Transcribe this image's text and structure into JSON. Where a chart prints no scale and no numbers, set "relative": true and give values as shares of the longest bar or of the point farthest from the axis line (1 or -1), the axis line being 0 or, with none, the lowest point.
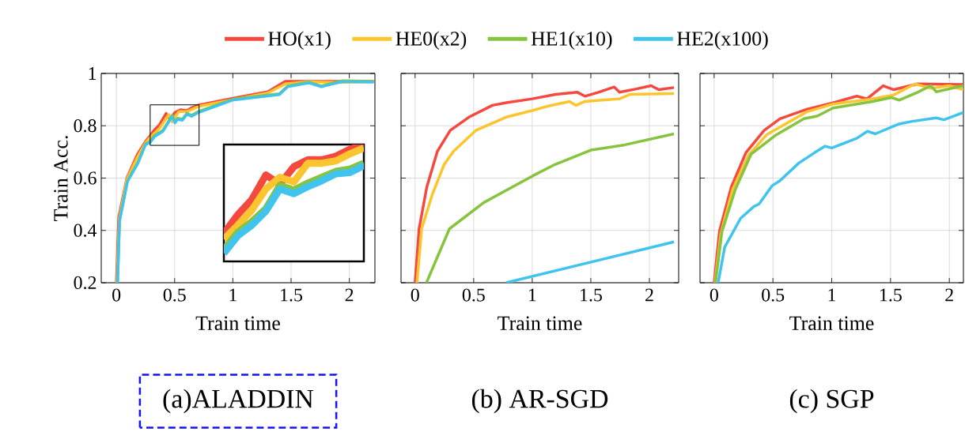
{
  "chart_data": [
    {
      "type": "line",
      "title": "(a)ALADDIN",
      "xlabel": "Train time",
      "ylabel": "Train Acc.",
      "xlim": [
        -0.13,
        2.22
      ],
      "ylim": [
        0.2,
        1
      ],
      "xticks": [
        0,
        0.5,
        1,
        1.5,
        2
      ],
      "yticks": [
        0.2,
        0.4,
        0.6,
        0.8,
        1
      ],
      "grid": true,
      "series": [
        {
          "color": "#f5493f",
          "x": [
            0,
            0.02,
            0.09,
            0.18,
            0.25,
            0.296,
            0.33,
            0.37,
            0.427,
            0.46,
            0.503,
            0.55,
            0.606,
            0.646,
            0.706,
            1,
            1.3,
            1.45,
            1.65,
            1.9,
            2.21
          ],
          "values": [
            0.2,
            0.45,
            0.6,
            0.69,
            0.74,
            0.765,
            0.786,
            0.804,
            0.847,
            0.825,
            0.851,
            0.861,
            0.858,
            0.869,
            0.879,
            0.905,
            0.93,
            0.97,
            0.97,
            0.97,
            0.97
          ]
        },
        {
          "color": "#fcc52e",
          "x": [
            0.005,
            0.025,
            0.09,
            0.18,
            0.25,
            0.296,
            0.37,
            0.45,
            0.48,
            0.535,
            0.606,
            0.706,
            1,
            1.3,
            1.45,
            1.65,
            1.9,
            2.21
          ],
          "values": [
            0.2,
            0.445,
            0.595,
            0.68,
            0.735,
            0.758,
            0.79,
            0.843,
            0.815,
            0.854,
            0.854,
            0.874,
            0.9,
            0.925,
            0.96,
            0.968,
            0.965,
            0.968
          ]
        },
        {
          "color": "#86c440",
          "x": [
            0.01,
            0.027,
            0.095,
            0.185,
            0.25,
            0.29,
            0.327,
            0.4,
            0.479,
            0.503,
            0.527,
            0.567,
            0.606,
            0.646,
            0.706,
            0.995,
            1.4,
            1.47,
            1.65,
            1.76,
            1.94,
            2.21
          ],
          "values": [
            0.2,
            0.439,
            0.59,
            0.66,
            0.731,
            0.74,
            0.762,
            0.783,
            0.84,
            0.815,
            0.829,
            0.825,
            0.848,
            0.84,
            0.855,
            0.901,
            0.922,
            0.952,
            0.967,
            0.952,
            0.972,
            0.97
          ]
        },
        {
          "color": "#40c4ed",
          "x": [
            0.01,
            0.027,
            0.095,
            0.185,
            0.25,
            0.29,
            0.327,
            0.4,
            0.479,
            0.503,
            0.527,
            0.567,
            0.606,
            0.646,
            0.706,
            0.995,
            1.4,
            1.47,
            1.65,
            1.76,
            1.94,
            2.21
          ],
          "values": [
            0.2,
            0.436,
            0.587,
            0.657,
            0.728,
            0.736,
            0.758,
            0.779,
            0.836,
            0.811,
            0.825,
            0.821,
            0.844,
            0.836,
            0.851,
            0.898,
            0.919,
            0.949,
            0.964,
            0.949,
            0.969,
            0.967
          ]
        }
      ]
    },
    {
      "type": "line",
      "relative": true,
      "categories": [
        null,
        null,
        null,
        null,
        null,
        null,
        null,
        null,
        null,
        null,
        null
      ],
      "series": [
        {
          "color": "#f5493f",
          "values": [
            0.24,
            0.4,
            0.53,
            0.74,
            0.66,
            0.81,
            0.87,
            0.87,
            0.9,
            0.96,
            1
          ]
        },
        {
          "color": "#fcc52e",
          "values": [
            0.19,
            0.31,
            0.44,
            0.62,
            0.72,
            0.68,
            0.84,
            0.84,
            0.86,
            0.92,
            0.97
          ]
        },
        {
          "color": "#86c440",
          "values": [
            0.1,
            0.25,
            0.34,
            0.45,
            0.65,
            0.61,
            0.67,
            0.72,
            0.77,
            0.79,
            0.84
          ]
        },
        {
          "color": "#40c4ed",
          "values": [
            0.07,
            0.22,
            0.31,
            0.43,
            0.62,
            0.58,
            0.64,
            0.69,
            0.75,
            0.76,
            0.82
          ]
        }
      ]
    },
    {
      "type": "line",
      "title": "(b) AR-SGD",
      "xlabel": "Train time",
      "xlim": [
        -0.12,
        2.25
      ],
      "ylim": [
        0.2,
        1
      ],
      "xticks": [
        0,
        0.5,
        1,
        1.5,
        2
      ],
      "yticks": [
        0.2,
        0.4,
        0.6,
        0.8,
        1
      ],
      "grid": true,
      "tick_labels": "x",
      "legend": "top",
      "series": [
        {
          "name": "HO(x1)",
          "color": "#f5493f",
          "x": [
            0,
            0.034,
            0.1,
            0.19,
            0.3,
            0.46,
            0.66,
            0.78,
            1.0,
            1.2,
            1.385,
            1.45,
            1.565,
            1.7,
            1.745,
            1.88,
            2.015,
            2.08,
            2.21
          ],
          "values": [
            0.2,
            0.406,
            0.566,
            0.702,
            0.782,
            0.833,
            0.878,
            0.888,
            0.903,
            0.92,
            0.928,
            0.913,
            0.928,
            0.948,
            0.928,
            0.94,
            0.953,
            0.938,
            0.946
          ]
        },
        {
          "name": "HE0(x2)",
          "color": "#fcc52e",
          "x": [
            0.016,
            0.056,
            0.146,
            0.248,
            0.327,
            0.518,
            0.777,
            1.0,
            1.115,
            1.318,
            1.374,
            1.45,
            1.745,
            1.835,
            2.21
          ],
          "values": [
            0.2,
            0.406,
            0.536,
            0.652,
            0.702,
            0.782,
            0.833,
            0.858,
            0.873,
            0.893,
            0.878,
            0.893,
            0.903,
            0.92,
            0.923
          ]
        },
        {
          "name": "HE1(x10)",
          "color": "#86c440",
          "x": [
            0.097,
            0.293,
            0.585,
            0.998,
            1.194,
            1.5,
            1.79,
            2.21
          ],
          "values": [
            0.2,
            0.406,
            0.506,
            0.607,
            0.652,
            0.707,
            0.727,
            0.769
          ]
        },
        {
          "name": "HE2(x100)",
          "color": "#40c4ed",
          "x": [
            0.777,
            2.21
          ],
          "values": [
            0.2,
            0.356
          ]
        }
      ]
    },
    {
      "type": "line",
      "title": "(c) SGP",
      "xlabel": "Train time",
      "xlim": [
        -0.12,
        2.12
      ],
      "ylim": [
        0.2,
        1
      ],
      "xticks": [
        0,
        0.5,
        1,
        1.5,
        2
      ],
      "yticks": [
        0.2,
        0.4,
        0.6,
        0.8,
        1
      ],
      "grid": true,
      "tick_labels": "x",
      "series": [
        {
          "color": "#f5493f",
          "x": [
            0,
            0.045,
            0.146,
            0.27,
            0.425,
            0.56,
            0.787,
            1.01,
            1.213,
            1.3,
            1.438,
            1.528,
            1.73,
            2.12
          ],
          "values": [
            0.2,
            0.396,
            0.566,
            0.697,
            0.782,
            0.827,
            0.863,
            0.888,
            0.913,
            0.903,
            0.953,
            0.938,
            0.96,
            0.958
          ]
        },
        {
          "color": "#fcc52e",
          "x": [
            0.007,
            0.056,
            0.157,
            0.292,
            0.45,
            0.787,
            1.01,
            1.348,
            1.528,
            1.708,
            1.843,
            2.0,
            2.12
          ],
          "values": [
            0.2,
            0.386,
            0.556,
            0.687,
            0.767,
            0.853,
            0.883,
            0.903,
            0.918,
            0.96,
            0.943,
            0.953,
            0.938
          ]
        },
        {
          "color": "#86c440",
          "x": [
            0.011,
            0.067,
            0.18,
            0.315,
            0.517,
            0.764,
            0.876,
            1.011,
            1.348,
            1.506,
            1.573,
            1.73,
            1.843,
            1.888,
            2.12
          ],
          "values": [
            0.2,
            0.396,
            0.556,
            0.692,
            0.762,
            0.827,
            0.837,
            0.868,
            0.893,
            0.908,
            0.898,
            0.928,
            0.953,
            0.93,
            0.953
          ]
        },
        {
          "color": "#40c4ed",
          "x": [
            0.034,
            0.09,
            0.225,
            0.337,
            0.382,
            0.494,
            0.562,
            0.719,
            0.854,
            0.944,
            1.0,
            1.213,
            1.303,
            1.37,
            1.573,
            1.685,
            1.888,
            1.955,
            2.12
          ],
          "values": [
            0.2,
            0.336,
            0.446,
            0.491,
            0.501,
            0.571,
            0.591,
            0.657,
            0.697,
            0.722,
            0.715,
            0.752,
            0.779,
            0.769,
            0.807,
            0.817,
            0.83,
            0.823,
            0.851
          ]
        }
      ]
    }
  ]
}
